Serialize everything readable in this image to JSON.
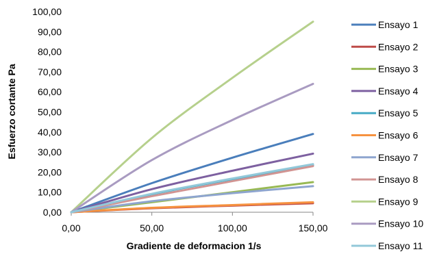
{
  "chart_data": {
    "type": "line",
    "title": "",
    "xlabel": "Gradiente de deformacion 1/s",
    "ylabel": "Esfuerzo cortante Pa",
    "xlim": [
      0,
      150
    ],
    "ylim": [
      0,
      100
    ],
    "x_ticks": [
      "0,00",
      "50,00",
      "100,00",
      "150,00"
    ],
    "y_ticks": [
      "0,00",
      "10,00",
      "20,00",
      "30,00",
      "40,00",
      "50,00",
      "60,00",
      "70,00",
      "80,00",
      "90,00",
      "100,00"
    ],
    "grid": false,
    "legend_position": "right",
    "series": [
      {
        "name": "Ensayo 1",
        "color": "#4A7EBB",
        "x": [
          0,
          50,
          100,
          150
        ],
        "y": [
          0,
          14.5,
          27.2,
          39.0
        ]
      },
      {
        "name": "Ensayo 2",
        "color": "#BE4B48",
        "x": [
          0,
          50,
          100,
          150
        ],
        "y": [
          0,
          2.0,
          3.3,
          4.5
        ]
      },
      {
        "name": "Ensayo 3",
        "color": "#98B954",
        "x": [
          0,
          50,
          100,
          150
        ],
        "y": [
          0,
          5.0,
          10.0,
          15.0
        ]
      },
      {
        "name": "Ensayo 4",
        "color": "#7D60A0",
        "x": [
          0,
          50,
          100,
          150
        ],
        "y": [
          0,
          11.5,
          20.7,
          29.2
        ]
      },
      {
        "name": "Ensayo 5",
        "color": "#46AAC5",
        "x": [
          0,
          50,
          100,
          150
        ],
        "y": [
          0,
          9.0,
          16.5,
          23.5
        ]
      },
      {
        "name": "Ensayo 6",
        "color": "#F69240",
        "x": [
          0,
          50,
          100,
          150
        ],
        "y": [
          0,
          2.2,
          3.6,
          5.0
        ]
      },
      {
        "name": "Ensayo 7",
        "color": "#8EA5CF",
        "x": [
          0,
          50,
          100,
          150
        ],
        "y": [
          0,
          5.5,
          9.5,
          13.0
        ]
      },
      {
        "name": "Ensayo 8",
        "color": "#D19492",
        "x": [
          0,
          50,
          100,
          150
        ],
        "y": [
          0,
          8.0,
          15.5,
          23.0
        ]
      },
      {
        "name": "Ensayo 9",
        "color": "#B6D08C",
        "x": [
          0,
          50,
          100,
          150
        ],
        "y": [
          0,
          37.0,
          67.0,
          95.0
        ]
      },
      {
        "name": "Ensayo 10",
        "color": "#A99BC1",
        "x": [
          0,
          50,
          100,
          150
        ],
        "y": [
          0,
          26.0,
          46.0,
          64.0
        ]
      },
      {
        "name": "Ensayo 11",
        "color": "#92C8D9",
        "x": [
          0,
          50,
          100,
          150
        ],
        "y": [
          0,
          9.2,
          16.8,
          24.0
        ]
      }
    ]
  }
}
